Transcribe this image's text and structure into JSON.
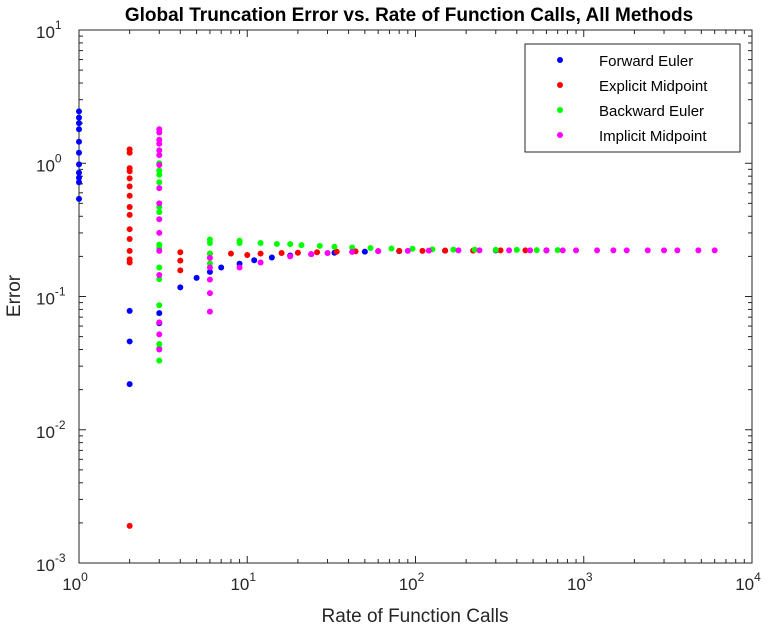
{
  "chart_data": {
    "type": "scatter",
    "title": "Global Truncation Error vs. Rate of Function Calls, All Methods",
    "xlabel": "Rate of Function Calls",
    "ylabel": "Error",
    "xscale": "log",
    "yscale": "log",
    "xlim": [
      1,
      10000
    ],
    "ylim": [
      0.001,
      10
    ],
    "xticks": [
      {
        "base": "10",
        "exp": "0",
        "value": 1
      },
      {
        "base": "10",
        "exp": "1",
        "value": 10
      },
      {
        "base": "10",
        "exp": "2",
        "value": 100
      },
      {
        "base": "10",
        "exp": "3",
        "value": 1000
      },
      {
        "base": "10",
        "exp": "4",
        "value": 10000
      }
    ],
    "yticks": [
      {
        "base": "10",
        "exp": "-3",
        "value": 0.001
      },
      {
        "base": "10",
        "exp": "-2",
        "value": 0.01
      },
      {
        "base": "10",
        "exp": "-1",
        "value": 0.1
      },
      {
        "base": "10",
        "exp": "0",
        "value": 1
      },
      {
        "base": "10",
        "exp": "1",
        "value": 10
      }
    ],
    "legend_position": "top-right",
    "series": [
      {
        "name": "Forward Euler",
        "color": "#0000ff",
        "points": [
          [
            1,
            2.45
          ],
          [
            1,
            2.2
          ],
          [
            1,
            2.0
          ],
          [
            1,
            1.8
          ],
          [
            1,
            1.45
          ],
          [
            1,
            1.2
          ],
          [
            1,
            0.98
          ],
          [
            1,
            0.85
          ],
          [
            1,
            0.78
          ],
          [
            1,
            0.72
          ],
          [
            1,
            0.54
          ],
          [
            2,
            0.078
          ],
          [
            2,
            0.046
          ],
          [
            2,
            0.022
          ],
          [
            3,
            0.075
          ],
          [
            3,
            0.063
          ],
          [
            4,
            0.117
          ],
          [
            5,
            0.138
          ],
          [
            6,
            0.153
          ],
          [
            7,
            0.165
          ],
          [
            9,
            0.176
          ],
          [
            11,
            0.187
          ],
          [
            14,
            0.196
          ],
          [
            18,
            0.203
          ],
          [
            24,
            0.208
          ],
          [
            33,
            0.213
          ],
          [
            50,
            0.217
          ],
          [
            80,
            0.219
          ],
          [
            150,
            0.221
          ],
          [
            300,
            0.222
          ],
          [
            600,
            0.222
          ]
        ]
      },
      {
        "name": "Explicit Midpoint",
        "color": "#ff0000",
        "points": [
          [
            2,
            1.27
          ],
          [
            2,
            1.2
          ],
          [
            2,
            0.92
          ],
          [
            2,
            0.87
          ],
          [
            2,
            0.77
          ],
          [
            2,
            0.67
          ],
          [
            2,
            0.57
          ],
          [
            2,
            0.47
          ],
          [
            2,
            0.41
          ],
          [
            2,
            0.32
          ],
          [
            2,
            0.27
          ],
          [
            2,
            0.22
          ],
          [
            2,
            0.19
          ],
          [
            2,
            0.18
          ],
          [
            2,
            0.0019
          ],
          [
            4,
            0.215
          ],
          [
            4,
            0.186
          ],
          [
            4,
            0.157
          ],
          [
            6,
            0.21
          ],
          [
            8,
            0.21
          ],
          [
            10,
            0.205
          ],
          [
            12,
            0.21
          ],
          [
            16,
            0.212
          ],
          [
            20,
            0.213
          ],
          [
            26,
            0.215
          ],
          [
            34,
            0.217
          ],
          [
            44,
            0.218
          ],
          [
            60,
            0.219
          ],
          [
            80,
            0.22
          ],
          [
            110,
            0.22
          ],
          [
            150,
            0.221
          ],
          [
            220,
            0.221
          ],
          [
            320,
            0.222
          ],
          [
            450,
            0.222
          ],
          [
            600,
            0.222
          ]
        ]
      },
      {
        "name": "Backward Euler",
        "color": "#00ff00",
        "points": [
          [
            3,
            1.0
          ],
          [
            3,
            0.88
          ],
          [
            3,
            0.82
          ],
          [
            3,
            0.72
          ],
          [
            3,
            0.47
          ],
          [
            3,
            0.43
          ],
          [
            3,
            0.245
          ],
          [
            3,
            0.23
          ],
          [
            3,
            0.165
          ],
          [
            3,
            0.135
          ],
          [
            3,
            0.086
          ],
          [
            3,
            0.044
          ],
          [
            3,
            0.041
          ],
          [
            3,
            0.033
          ],
          [
            6,
            0.268
          ],
          [
            6,
            0.252
          ],
          [
            6,
            0.21
          ],
          [
            6,
            0.177
          ],
          [
            9,
            0.262
          ],
          [
            9,
            0.252
          ],
          [
            12,
            0.252
          ],
          [
            15,
            0.248
          ],
          [
            18,
            0.247
          ],
          [
            21,
            0.243
          ],
          [
            27,
            0.24
          ],
          [
            33,
            0.236
          ],
          [
            42,
            0.233
          ],
          [
            54,
            0.231
          ],
          [
            72,
            0.229
          ],
          [
            96,
            0.228
          ],
          [
            126,
            0.226
          ],
          [
            168,
            0.225
          ],
          [
            225,
            0.225
          ],
          [
            300,
            0.224
          ],
          [
            400,
            0.224
          ],
          [
            525,
            0.223
          ],
          [
            700,
            0.223
          ]
        ]
      },
      {
        "name": "Implicit Midpoint",
        "color": "#ff00ff",
        "points": [
          [
            3,
            1.8
          ],
          [
            3,
            1.7
          ],
          [
            3,
            1.5
          ],
          [
            3,
            1.4
          ],
          [
            3,
            1.25
          ],
          [
            3,
            1.15
          ],
          [
            3,
            0.97
          ],
          [
            3,
            0.65
          ],
          [
            3,
            0.5
          ],
          [
            3,
            0.38
          ],
          [
            3,
            0.3
          ],
          [
            3,
            0.22
          ],
          [
            3,
            0.145
          ],
          [
            3,
            0.064
          ],
          [
            3,
            0.052
          ],
          [
            3,
            0.04
          ],
          [
            6,
            0.195
          ],
          [
            6,
            0.165
          ],
          [
            6,
            0.134
          ],
          [
            6,
            0.106
          ],
          [
            6,
            0.077
          ],
          [
            9,
            0.165
          ],
          [
            12,
            0.18
          ],
          [
            18,
            0.2
          ],
          [
            24,
            0.208
          ],
          [
            30,
            0.212
          ],
          [
            42,
            0.216
          ],
          [
            60,
            0.219
          ],
          [
            90,
            0.22
          ],
          [
            120,
            0.221
          ],
          [
            180,
            0.222
          ],
          [
            240,
            0.222
          ],
          [
            360,
            0.222
          ],
          [
            480,
            0.222
          ],
          [
            600,
            0.222
          ],
          [
            750,
            0.222
          ],
          [
            900,
            0.222
          ],
          [
            1200,
            0.222
          ],
          [
            1500,
            0.222
          ],
          [
            1800,
            0.222
          ],
          [
            2400,
            0.222
          ],
          [
            3000,
            0.222
          ],
          [
            3600,
            0.222
          ],
          [
            4800,
            0.222
          ],
          [
            6000,
            0.222
          ]
        ]
      }
    ]
  }
}
